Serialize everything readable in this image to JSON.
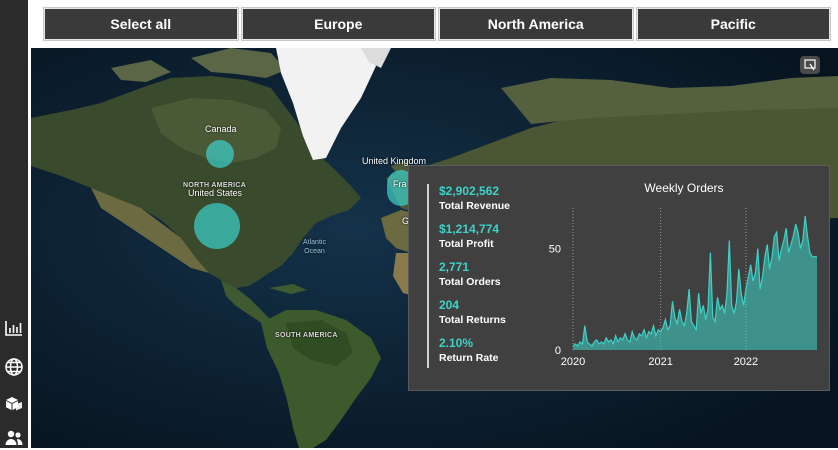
{
  "filters": [
    {
      "label": "Select all"
    },
    {
      "label": "Europe"
    },
    {
      "label": "North America"
    },
    {
      "label": "Pacific"
    }
  ],
  "map": {
    "labels": {
      "canada": "Canada",
      "north_america": "NORTH AMERICA",
      "united_states": "United States",
      "united_kingdom": "United Kingdom",
      "atlantic_ocean": "Atlantic\nOcean",
      "south_america": "SOUTH AMERICA",
      "france_partial": "Fra",
      "germany_partial": "G"
    },
    "bubble_color": "#3ccdc8"
  },
  "kpis": [
    {
      "value": "$2,902,562",
      "label": "Total Revenue"
    },
    {
      "value": "$1,214,774",
      "label": "Total Profit"
    },
    {
      "value": "2,771",
      "label": "Total Orders"
    },
    {
      "value": "204",
      "label": "Total Returns"
    },
    {
      "value": "2.10%",
      "label": "Return Rate"
    }
  ],
  "chart_data": {
    "type": "area",
    "title": "Weekly Orders",
    "xlabel": "",
    "ylabel": "",
    "x_ticks": [
      "2020",
      "2021",
      "2022"
    ],
    "y_ticks": [
      0,
      50
    ],
    "ylim": [
      0,
      70
    ],
    "color": "#3ed3c8",
    "series": [
      {
        "values": [
          2,
          3,
          2,
          4,
          3,
          12,
          4,
          3,
          2,
          4,
          5,
          3,
          4,
          3,
          6,
          4,
          5,
          3,
          7,
          4,
          6,
          5,
          8,
          5,
          4,
          9,
          6,
          5,
          8,
          7,
          10,
          6,
          9,
          8,
          12,
          7,
          10,
          9,
          11,
          15,
          10,
          12,
          24,
          16,
          13,
          20,
          14,
          12,
          18,
          30,
          14,
          12,
          10,
          28,
          18,
          22,
          15,
          20,
          48,
          16,
          14,
          26,
          20,
          22,
          18,
          28,
          54,
          22,
          18,
          24,
          40,
          28,
          22,
          30,
          36,
          42,
          34,
          38,
          50,
          30,
          36,
          46,
          52,
          40,
          46,
          56,
          58,
          44,
          50,
          54,
          60,
          48,
          52,
          56,
          62,
          58,
          50,
          54,
          66,
          56,
          48,
          46,
          46,
          46
        ]
      }
    ]
  }
}
